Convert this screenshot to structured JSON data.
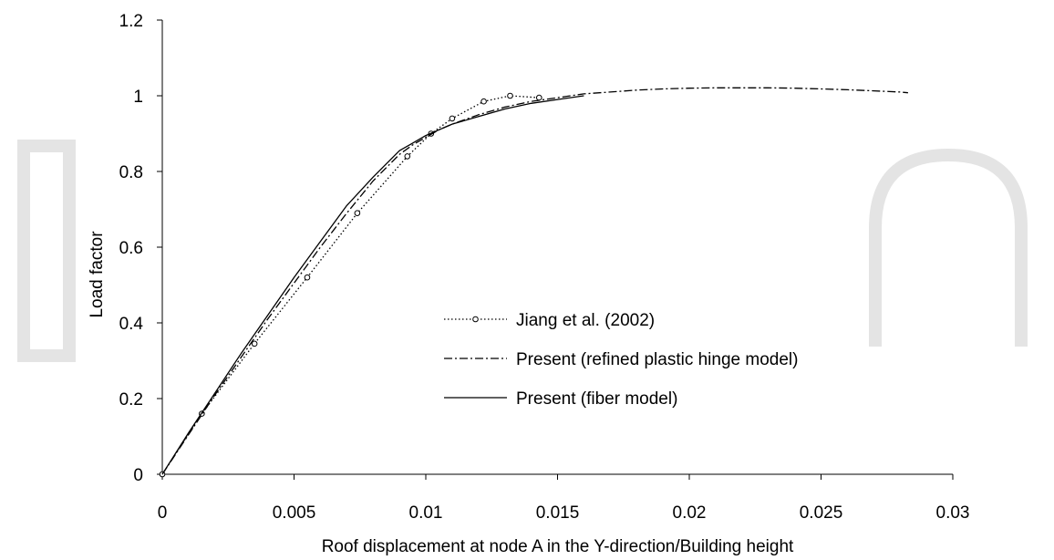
{
  "chart_data": {
    "type": "line",
    "title": "",
    "xlabel": "Roof displacement at node A in the Y-direction/Building height",
    "ylabel": "Load factor",
    "xlim": [
      0,
      0.03
    ],
    "ylim": [
      0,
      1.2
    ],
    "x_ticks": [
      0,
      0.005,
      0.01,
      0.015,
      0.02,
      0.025,
      0.03
    ],
    "x_tick_labels": [
      "0",
      "0.005",
      "0.01",
      "0.015",
      "0.02",
      "0.025",
      "0.03"
    ],
    "y_ticks": [
      0,
      0.2,
      0.4,
      0.6,
      0.8,
      1,
      1.2
    ],
    "y_tick_labels": [
      "0",
      "0.2",
      "0.4",
      "0.6",
      "0.8",
      "1",
      "1.2"
    ],
    "grid": false,
    "legend_position": "center",
    "series": [
      {
        "name": "Jiang et al. (2002)",
        "style": "dotted-circle",
        "color": "#000000",
        "x": [
          0,
          0.0015,
          0.0035,
          0.0055,
          0.0074,
          0.0093,
          0.0102,
          0.011,
          0.0122,
          0.0132,
          0.0143
        ],
        "y": [
          0,
          0.16,
          0.345,
          0.52,
          0.69,
          0.84,
          0.9,
          0.94,
          0.985,
          1.0,
          0.995
        ]
      },
      {
        "name": "Present (refined plastic hinge model)",
        "style": "dash-dot",
        "color": "#000000",
        "x": [
          0,
          0.001,
          0.002,
          0.003,
          0.004,
          0.005,
          0.006,
          0.007,
          0.008,
          0.009,
          0.0095,
          0.01,
          0.0105,
          0.011,
          0.012,
          0.013,
          0.014,
          0.015,
          0.016,
          0.017,
          0.018,
          0.019,
          0.02,
          0.021,
          0.022,
          0.023,
          0.024,
          0.025,
          0.026,
          0.027,
          0.028,
          0.0283
        ],
        "y": [
          0,
          0.105,
          0.21,
          0.31,
          0.41,
          0.505,
          0.6,
          0.69,
          0.775,
          0.845,
          0.87,
          0.89,
          0.91,
          0.925,
          0.95,
          0.97,
          0.985,
          0.995,
          1.005,
          1.01,
          1.015,
          1.018,
          1.02,
          1.021,
          1.021,
          1.021,
          1.02,
          1.018,
          1.016,
          1.013,
          1.01,
          1.008
        ]
      },
      {
        "name": "Present (fiber model)",
        "style": "solid",
        "color": "#000000",
        "x": [
          0,
          0.001,
          0.002,
          0.003,
          0.004,
          0.005,
          0.006,
          0.007,
          0.008,
          0.009,
          0.0095,
          0.01,
          0.0105,
          0.011,
          0.012,
          0.013,
          0.014,
          0.015,
          0.016
        ],
        "y": [
          0,
          0.11,
          0.215,
          0.32,
          0.42,
          0.52,
          0.615,
          0.71,
          0.785,
          0.855,
          0.875,
          0.895,
          0.91,
          0.925,
          0.945,
          0.965,
          0.98,
          0.99,
          1.0
        ]
      }
    ]
  }
}
